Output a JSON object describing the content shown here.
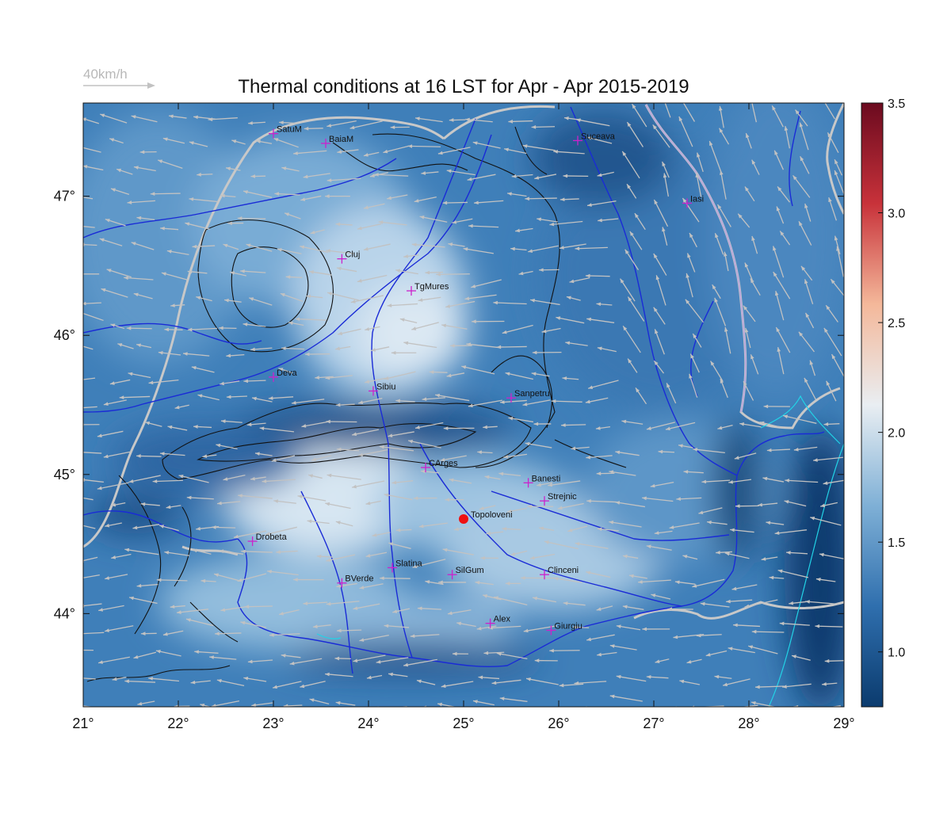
{
  "title": "Thermal conditions at 16 LST for Apr - Apr  2015-2019",
  "wind_legend": {
    "label": "40km/h"
  },
  "axes": {
    "lon_range": [
      21,
      29
    ],
    "lat_range": [
      43.33,
      47.67
    ],
    "x_ticks": [
      {
        "value": 21,
        "label": "21°"
      },
      {
        "value": 22,
        "label": "22°"
      },
      {
        "value": 23,
        "label": "23°"
      },
      {
        "value": 24,
        "label": "24°"
      },
      {
        "value": 25,
        "label": "25°"
      },
      {
        "value": 26,
        "label": "26°"
      },
      {
        "value": 27,
        "label": "27°"
      },
      {
        "value": 28,
        "label": "28°"
      },
      {
        "value": 29,
        "label": "29°"
      }
    ],
    "y_ticks": [
      {
        "value": 47,
        "label": "47°"
      },
      {
        "value": 46,
        "label": "46°"
      },
      {
        "value": 45,
        "label": "45°"
      },
      {
        "value": 44,
        "label": "44°"
      }
    ]
  },
  "colorbar": {
    "range": [
      0.75,
      3.5
    ],
    "ticks": [
      {
        "value": 3.5,
        "label": "3.5"
      },
      {
        "value": 3.0,
        "label": "3.0"
      },
      {
        "value": 2.5,
        "label": "2.5"
      },
      {
        "value": 2.0,
        "label": "2.0"
      },
      {
        "value": 1.5,
        "label": "1.5"
      },
      {
        "value": 1.0,
        "label": "1.0"
      }
    ],
    "colors": [
      "#0b3b6e",
      "#2f6fae",
      "#7fb0d6",
      "#e9eef2",
      "#f4b89a",
      "#c8323a",
      "#6b0a1f"
    ]
  },
  "cities": [
    {
      "name": "SatuM",
      "lon": 23.0,
      "lat": 47.45
    },
    {
      "name": "BaiaM",
      "lon": 23.55,
      "lat": 47.38
    },
    {
      "name": "Suceava",
      "lon": 26.2,
      "lat": 47.4
    },
    {
      "name": "Iasi",
      "lon": 27.35,
      "lat": 46.95
    },
    {
      "name": "Cluj",
      "lon": 23.72,
      "lat": 46.55
    },
    {
      "name": "TgMures",
      "lon": 24.45,
      "lat": 46.32
    },
    {
      "name": "Deva",
      "lon": 23.0,
      "lat": 45.7
    },
    {
      "name": "Sibiu",
      "lon": 24.05,
      "lat": 45.6
    },
    {
      "name": "Sanpetru",
      "lon": 25.5,
      "lat": 45.55
    },
    {
      "name": "CArges",
      "lon": 24.6,
      "lat": 45.05
    },
    {
      "name": "Banesti",
      "lon": 25.68,
      "lat": 44.94
    },
    {
      "name": "Strejnic",
      "lon": 25.85,
      "lat": 44.81
    },
    {
      "name": "Drobeta",
      "lon": 22.78,
      "lat": 44.52
    },
    {
      "name": "Slatina",
      "lon": 24.25,
      "lat": 44.33
    },
    {
      "name": "SilGum",
      "lon": 24.88,
      "lat": 44.28
    },
    {
      "name": "Clinceni",
      "lon": 25.85,
      "lat": 44.28
    },
    {
      "name": "BVerde",
      "lon": 23.72,
      "lat": 44.22
    },
    {
      "name": "Alex",
      "lon": 25.28,
      "lat": 43.93
    },
    {
      "name": "Giurgiu",
      "lon": 25.92,
      "lat": 43.88
    }
  ],
  "highlight_site": {
    "name": "Topoloveni",
    "lon": 25.0,
    "lat": 44.68,
    "color": "#ee1111"
  },
  "marker_color": "#cc22cc",
  "colors": {
    "rivers": "#1a2bd6",
    "borders": "#c8c8c8",
    "contours": "#111111",
    "wind_arrows": "#c2c2c2",
    "coast": "#22d3e6"
  }
}
